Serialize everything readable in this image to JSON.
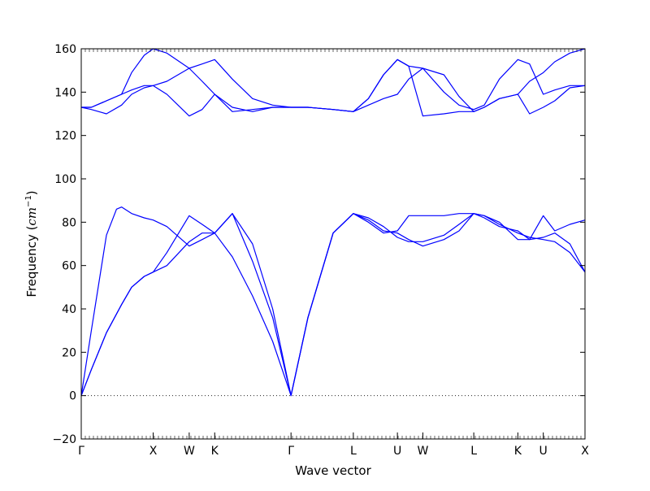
{
  "chart_data": {
    "type": "line",
    "xlabel": "Wave vector",
    "ylabel": "Frequency (",
    "ylabel_unit": "cm",
    "ylabel_unit_sup": "−1",
    "ylabel_close": ")",
    "ylim": [
      -20,
      160
    ],
    "yticks": [
      "−20",
      "0",
      "20",
      "40",
      "60",
      "80",
      "100",
      "120",
      "140",
      "160"
    ],
    "ytick_values": [
      -20,
      0,
      20,
      40,
      60,
      80,
      100,
      120,
      140,
      160
    ],
    "xlim": [
      0,
      1
    ],
    "high_symmetry_points": [
      {
        "label": "Γ",
        "x": 0.0
      },
      {
        "label": "X",
        "x": 0.1428
      },
      {
        "label": "W",
        "x": 0.2143
      },
      {
        "label": "K",
        "x": 0.2649
      },
      {
        "label": "Γ",
        "x": 0.4164
      },
      {
        "label": "L",
        "x": 0.5401
      },
      {
        "label": "U",
        "x": 0.6276
      },
      {
        "label": "W",
        "x": 0.6781
      },
      {
        "label": "L",
        "x": 0.7792
      },
      {
        "label": "K",
        "x": 0.8667
      },
      {
        "label": "U",
        "x": 0.9172
      },
      {
        "label": "X",
        "x": 1.0
      }
    ],
    "zero_line": true,
    "line_color": "#0000ff",
    "series": [
      {
        "x": [
          0,
          0.02,
          0.05,
          0.08,
          0.1,
          0.125,
          0.1428,
          0.17,
          0.2143,
          0.24,
          0.2649,
          0.3,
          0.34,
          0.38,
          0.4164,
          0.45,
          0.5,
          0.5401,
          0.57,
          0.6,
          0.6276,
          0.65,
          0.6781,
          0.72,
          0.75,
          0.7792,
          0.8,
          0.83,
          0.8667,
          0.89,
          0.9172,
          0.94,
          0.97,
          1.0
        ],
        "y": [
          0,
          12,
          29,
          42,
          50,
          55,
          57,
          60,
          71,
          75,
          75,
          64,
          46,
          25,
          0,
          36,
          75,
          84,
          81,
          76,
          75,
          72,
          69,
          72,
          76,
          84,
          83,
          79,
          75,
          73,
          72,
          71,
          66,
          57
        ]
      },
      {
        "x": [
          0,
          0.02,
          0.05,
          0.08,
          0.1,
          0.125,
          0.1428,
          0.17,
          0.2143,
          0.24,
          0.2649,
          0.3,
          0.34,
          0.38,
          0.4164,
          0.45,
          0.5,
          0.5401,
          0.57,
          0.6,
          0.6276,
          0.65,
          0.6781,
          0.72,
          0.75,
          0.7792,
          0.8,
          0.83,
          0.8667,
          0.89,
          0.9172,
          0.94,
          0.97,
          1.0
        ],
        "y": [
          0,
          12,
          29,
          42,
          50,
          55,
          57,
          66,
          83,
          79,
          75,
          84,
          70,
          40,
          0,
          36,
          75,
          84,
          82,
          78,
          73,
          71,
          71,
          74,
          79,
          84,
          83,
          80,
          72,
          72,
          73,
          75,
          70,
          57
        ]
      },
      {
        "x": [
          0,
          0.02,
          0.05,
          0.07,
          0.08,
          0.1,
          0.125,
          0.1428,
          0.17,
          0.2143,
          0.24,
          0.2649,
          0.3,
          0.34,
          0.38,
          0.4164,
          0.45,
          0.5,
          0.5401,
          0.57,
          0.6,
          0.6276,
          0.65,
          0.6781,
          0.72,
          0.75,
          0.7792,
          0.8,
          0.83,
          0.8667,
          0.89,
          0.9172,
          0.94,
          0.97,
          1.0
        ],
        "y": [
          0,
          30,
          74,
          86,
          87,
          84,
          82,
          81,
          78,
          69,
          72,
          75,
          84,
          62,
          36,
          0,
          36,
          75,
          84,
          80,
          75,
          76,
          83,
          83,
          83,
          84,
          84,
          82,
          78,
          76,
          72,
          83,
          76,
          79,
          81
        ]
      },
      {
        "x": [
          0,
          0.02,
          0.05,
          0.08,
          0.1,
          0.125,
          0.1428,
          0.17,
          0.2143,
          0.24,
          0.2649,
          0.3,
          0.34,
          0.38,
          0.4164,
          0.45,
          0.5,
          0.5401,
          0.57,
          0.6,
          0.6276,
          0.65,
          0.6781,
          0.72,
          0.75,
          0.7792,
          0.8,
          0.83,
          0.8667,
          0.89,
          0.9172,
          0.94,
          0.97,
          1.0
        ],
        "y": [
          133,
          132,
          130,
          134,
          139,
          142,
          143,
          139,
          129,
          132,
          139,
          131,
          132,
          133,
          133,
          133,
          132,
          131,
          137,
          148,
          155,
          152,
          151,
          140,
          134,
          132,
          134,
          146,
          155,
          153,
          139,
          141,
          143,
          143
        ]
      },
      {
        "x": [
          0,
          0.02,
          0.05,
          0.08,
          0.1,
          0.125,
          0.1428,
          0.17,
          0.2143,
          0.24,
          0.2649,
          0.3,
          0.34,
          0.38,
          0.4164,
          0.45,
          0.5,
          0.5401,
          0.57,
          0.6,
          0.6276,
          0.65,
          0.6781,
          0.72,
          0.75,
          0.7792,
          0.8,
          0.83,
          0.8667,
          0.89,
          0.9172,
          0.94,
          0.97,
          1.0
        ],
        "y": [
          133,
          133,
          136,
          139,
          141,
          143,
          143,
          145,
          151,
          153,
          155,
          146,
          137,
          134,
          133,
          133,
          132,
          131,
          134,
          137,
          139,
          146,
          151,
          148,
          138,
          131,
          133,
          137,
          139,
          130,
          133,
          136,
          142,
          143
        ]
      },
      {
        "x": [
          0,
          0.02,
          0.05,
          0.08,
          0.1,
          0.125,
          0.1428,
          0.17,
          0.2143,
          0.24,
          0.2649,
          0.3,
          0.34,
          0.38,
          0.4164,
          0.45,
          0.5,
          0.5401,
          0.57,
          0.6,
          0.6276,
          0.65,
          0.6781,
          0.72,
          0.75,
          0.7792,
          0.8,
          0.83,
          0.8667,
          0.89,
          0.9172,
          0.94,
          0.97,
          1.0
        ],
        "y": [
          133,
          133,
          136,
          139,
          149,
          157,
          160,
          158,
          151,
          145,
          139,
          133,
          131,
          133,
          133,
          133,
          132,
          131,
          137,
          148,
          155,
          152,
          129,
          130,
          131,
          131,
          133,
          137,
          139,
          145,
          149,
          154,
          158,
          160
        ]
      }
    ]
  }
}
